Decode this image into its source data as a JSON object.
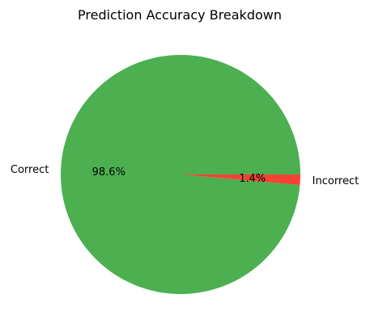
{
  "chart_data": {
    "type": "pie",
    "title": "Prediction Accuracy Breakdown",
    "slices": [
      {
        "label": "Correct",
        "value": 98.6,
        "pct_label": "98.6%",
        "color": "#4caf50"
      },
      {
        "label": "Incorrect",
        "value": 1.4,
        "pct_label": "1.4%",
        "color": "#f44336"
      }
    ],
    "start_angle_deg": 0,
    "direction": "counterclockwise"
  }
}
